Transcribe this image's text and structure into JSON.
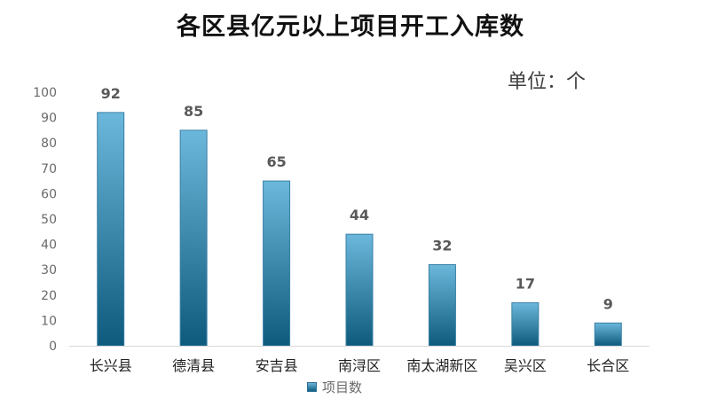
{
  "colors": {
    "bar_top": "#6cb8dc",
    "bar_bottom": "#0d5a7c",
    "bar_stroke": "#3a7fa6",
    "axis": "#d9d9d9"
  },
  "chart_data": {
    "type": "bar",
    "title": "各区县亿元以上项目开工入库数",
    "unit": "单位：个",
    "categories": [
      "长兴县",
      "德清县",
      "安吉县",
      "南浔区",
      "南太湖新区",
      "吴兴区",
      "长合区"
    ],
    "series": [
      {
        "name": "项目数",
        "values": [
          92,
          85,
          65,
          44,
          32,
          17,
          9
        ]
      }
    ],
    "ylim": [
      0,
      100
    ],
    "yticks": [
      0,
      10,
      20,
      30,
      40,
      50,
      60,
      70,
      80,
      90,
      100
    ],
    "grid": false,
    "legend": "bottom"
  }
}
